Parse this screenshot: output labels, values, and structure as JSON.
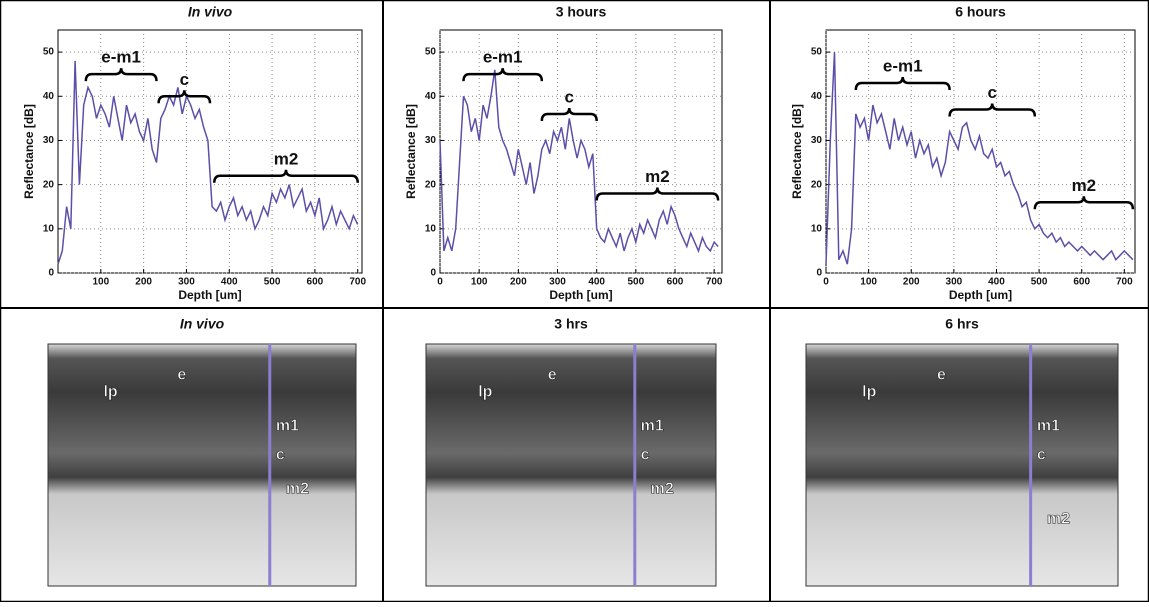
{
  "chart_data": [
    {
      "type": "line",
      "title": "In vivo",
      "x_label": "Depth [um]",
      "y_label": "Reflectance [dB]",
      "x": [
        0,
        10,
        20,
        30,
        40,
        50,
        60,
        70,
        80,
        90,
        100,
        110,
        120,
        130,
        140,
        150,
        160,
        170,
        180,
        190,
        200,
        210,
        220,
        230,
        240,
        250,
        260,
        270,
        280,
        290,
        300,
        310,
        320,
        330,
        340,
        350,
        360,
        370,
        380,
        390,
        400,
        410,
        420,
        430,
        440,
        450,
        460,
        470,
        480,
        490,
        500,
        510,
        520,
        530,
        540,
        550,
        560,
        570,
        580,
        590,
        600,
        610,
        620,
        630,
        640,
        650,
        660,
        670,
        680,
        690,
        700
      ],
      "series": [
        {
          "name": "In vivo",
          "color": "#5b4fa8",
          "values": [
            2,
            5,
            15,
            10,
            48,
            20,
            38,
            42,
            40,
            35,
            38,
            36,
            33,
            40,
            35,
            30,
            38,
            34,
            36,
            32,
            30,
            35,
            28,
            25,
            35,
            37,
            40,
            38,
            42,
            36,
            40,
            38,
            35,
            37,
            33,
            30,
            15,
            14,
            16,
            12,
            15,
            17,
            13,
            15,
            12,
            14,
            10,
            12,
            15,
            13,
            18,
            16,
            19,
            17,
            20,
            15,
            17,
            19,
            14,
            16,
            13,
            17,
            10,
            12,
            15,
            11,
            14,
            12,
            10,
            13,
            11
          ]
        }
      ],
      "xlim": [
        0,
        710
      ],
      "ylim": [
        0,
        55
      ],
      "xticks": [
        100,
        200,
        300,
        400,
        500,
        600,
        700
      ],
      "yticks": [
        0,
        10,
        20,
        30,
        40,
        50
      ],
      "grid": true,
      "annotations": [
        {
          "text": "e-m1",
          "x": [
            65,
            230
          ],
          "y": 45
        },
        {
          "text": "c",
          "x": [
            235,
            355
          ],
          "y": 40
        },
        {
          "text": "m2",
          "x": [
            365,
            700
          ],
          "y": 22
        }
      ]
    },
    {
      "type": "line",
      "title": "3 hours",
      "x_label": "Depth [um]",
      "y_label": "Reflectance [dB]",
      "x": [
        0,
        10,
        20,
        30,
        40,
        50,
        60,
        70,
        80,
        90,
        100,
        110,
        120,
        130,
        140,
        150,
        160,
        170,
        180,
        190,
        200,
        210,
        220,
        230,
        240,
        250,
        260,
        270,
        280,
        290,
        300,
        310,
        320,
        330,
        340,
        350,
        360,
        370,
        380,
        390,
        400,
        410,
        420,
        430,
        440,
        450,
        460,
        470,
        480,
        490,
        500,
        510,
        520,
        530,
        540,
        550,
        560,
        570,
        580,
        590,
        600,
        610,
        620,
        630,
        640,
        650,
        660,
        670,
        680,
        690,
        700,
        710
      ],
      "series": [
        {
          "name": "3 hours",
          "color": "#5b4fa8",
          "values": [
            30,
            5,
            8,
            5,
            10,
            25,
            40,
            38,
            32,
            35,
            30,
            38,
            35,
            40,
            46,
            33,
            30,
            28,
            25,
            22,
            28,
            24,
            20,
            25,
            18,
            22,
            28,
            30,
            27,
            32,
            30,
            33,
            28,
            35,
            30,
            26,
            30,
            28,
            24,
            27,
            10,
            8,
            7,
            10,
            8,
            6,
            9,
            5,
            8,
            10,
            7,
            11,
            9,
            12,
            10,
            8,
            12,
            14,
            11,
            15,
            13,
            10,
            8,
            6,
            9,
            7,
            5,
            8,
            6,
            5,
            7,
            6
          ]
        }
      ],
      "xlim": [
        0,
        720
      ],
      "ylim": [
        0,
        55
      ],
      "xticks": [
        0,
        100,
        200,
        300,
        400,
        500,
        600,
        700
      ],
      "yticks": [
        0,
        10,
        20,
        30,
        40,
        50
      ],
      "grid": true,
      "annotations": [
        {
          "text": "e-m1",
          "x": [
            60,
            260
          ],
          "y": 45
        },
        {
          "text": "c",
          "x": [
            260,
            400
          ],
          "y": 36
        },
        {
          "text": "m2",
          "x": [
            400,
            710
          ],
          "y": 18
        }
      ]
    },
    {
      "type": "line",
      "title": "6 hours",
      "x_label": "Depth [um]",
      "y_label": "Reflectance [dB]",
      "x": [
        0,
        10,
        20,
        30,
        40,
        50,
        60,
        70,
        80,
        90,
        100,
        110,
        120,
        130,
        140,
        150,
        160,
        170,
        180,
        190,
        200,
        210,
        220,
        230,
        240,
        250,
        260,
        270,
        280,
        290,
        300,
        310,
        320,
        330,
        340,
        350,
        360,
        370,
        380,
        390,
        400,
        410,
        420,
        430,
        440,
        450,
        460,
        470,
        480,
        490,
        500,
        510,
        520,
        530,
        540,
        550,
        560,
        570,
        580,
        590,
        600,
        610,
        620,
        630,
        640,
        650,
        660,
        670,
        680,
        690,
        700,
        710,
        720
      ],
      "series": [
        {
          "name": "6 hours",
          "color": "#5b4fa8",
          "values": [
            2,
            30,
            50,
            3,
            5,
            2,
            10,
            36,
            33,
            35,
            30,
            38,
            34,
            36,
            32,
            28,
            35,
            30,
            33,
            29,
            32,
            26,
            30,
            27,
            29,
            24,
            26,
            22,
            25,
            32,
            30,
            28,
            33,
            34,
            30,
            28,
            31,
            27,
            26,
            28,
            24,
            25,
            22,
            23,
            20,
            18,
            15,
            16,
            12,
            10,
            11,
            9,
            8,
            9,
            7,
            8,
            6,
            7,
            6,
            5,
            6,
            5,
            4,
            5,
            4,
            3,
            4,
            5,
            3,
            4,
            5,
            4,
            3
          ]
        }
      ],
      "xlim": [
        0,
        725
      ],
      "ylim": [
        0,
        55
      ],
      "xticks": [
        0,
        100,
        200,
        300,
        400,
        500,
        600,
        700
      ],
      "yticks": [
        0,
        10,
        20,
        30,
        40,
        50
      ],
      "grid": true,
      "annotations": [
        {
          "text": "e-m1",
          "x": [
            70,
            290
          ],
          "y": 43
        },
        {
          "text": "c",
          "x": [
            290,
            490
          ],
          "y": 37
        },
        {
          "text": "m2",
          "x": [
            490,
            720
          ],
          "y": 16
        }
      ]
    }
  ],
  "images": [
    {
      "title": "In vivo",
      "labels": [
        "lp",
        "e",
        "m1",
        "c",
        "m2"
      ]
    },
    {
      "title": "3 hrs",
      "labels": [
        "lp",
        "e",
        "m1",
        "c",
        "m2"
      ]
    },
    {
      "title": "6 hrs",
      "labels": [
        "lp",
        "e",
        "m1",
        "c",
        "m2"
      ]
    }
  ]
}
